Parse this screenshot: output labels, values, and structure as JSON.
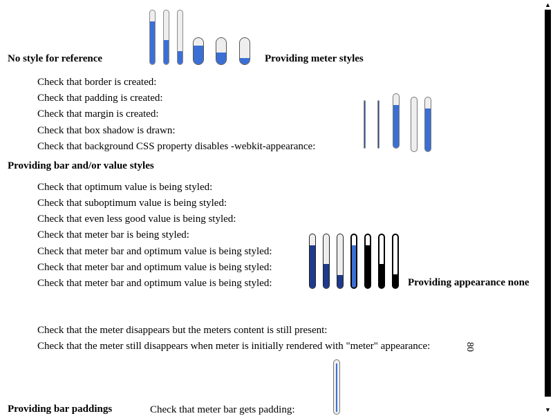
{
  "headings": {
    "no_style": "No style for reference",
    "meter_styles": "Providing meter styles",
    "bar_value_styles": "Providing bar and/or value styles",
    "appearance_none": "Providing appearance none",
    "bar_paddings": "Providing bar paddings"
  },
  "meter_styles_checks": [
    "Check that border is created:",
    "Check that padding is created:",
    "Check that margin is created:",
    "Check that box shadow is drawn:",
    "Check that background CSS property disables -webkit-appearance:"
  ],
  "bar_value_checks": [
    "Check that optimum value is being styled:",
    "Check that suboptimum value is being styled:",
    "Check that even less good value is being styled:",
    "Check that meter bar is being styled:",
    "Check that meter bar and optimum value is being styled:",
    "Check that meter bar and optimum value is being styled:",
    "Check that meter bar and optimum value is being styled:"
  ],
  "appearance_checks": [
    "Check that the meter disappears but the meters content is still present:",
    "Check that the meter still disappears when meter is initially rendered with \"meter\" appearance:"
  ],
  "rotated_content": "80",
  "padding_check": "Check that meter bar gets padding:",
  "reference_meters": [
    0.8,
    0.45,
    0.25
  ],
  "reference_pill_meters": [
    0.7,
    0.45,
    0.25
  ],
  "styled_meters": [
    1.0,
    1.0,
    0.8,
    0.0,
    0.8
  ],
  "bar_value_meters": [
    0.8,
    0.45,
    0.25,
    0.8,
    0.8,
    0.45,
    0.25
  ],
  "padded_meter": 0.9,
  "colors": {
    "meter_fill": "#3b6fd4",
    "meter_dark_fill": "#1d3a8c"
  }
}
